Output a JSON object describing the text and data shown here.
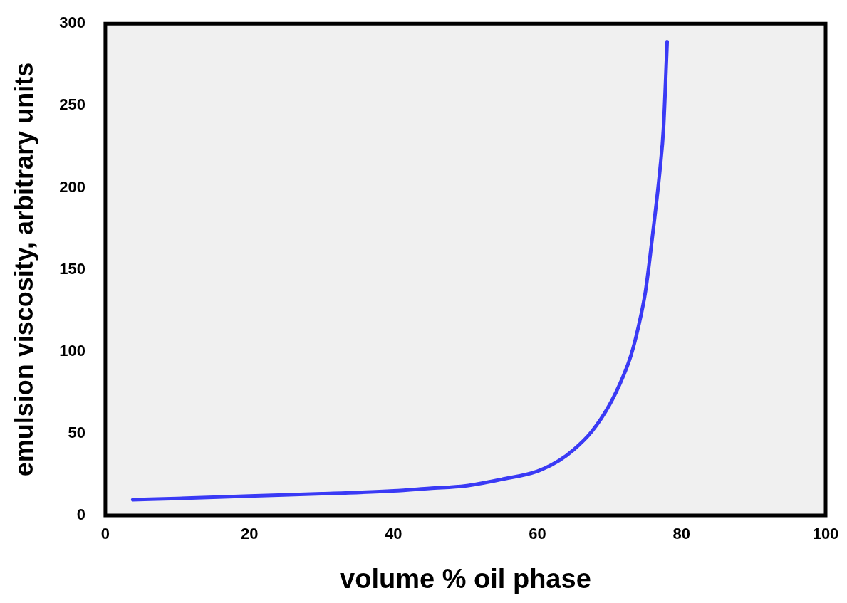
{
  "chart_data": {
    "type": "line",
    "xlabel": "volume % oil phase",
    "ylabel": "emulsion viscosity, arbitrary units",
    "xlim": [
      0,
      100
    ],
    "xticks": [
      0,
      20,
      40,
      60,
      80,
      100
    ],
    "ylim": [
      0,
      300
    ],
    "yticks": [
      0,
      50,
      100,
      150,
      200,
      250,
      300
    ],
    "grid": false,
    "marker": "none",
    "line_style": "solid",
    "series": [
      {
        "color": "#3a3af5",
        "x": [
          3.8,
          10,
          20,
          30,
          40,
          45,
          50,
          55,
          60,
          63,
          65,
          67.5,
          70,
          72,
          73,
          74,
          75,
          76,
          77,
          77.5,
          78
        ],
        "values": [
          9.6,
          10.3,
          11.8,
          13.2,
          15,
          16.5,
          18,
          22,
          27,
          33.5,
          40,
          51,
          67.5,
          86,
          98,
          115,
          137,
          172,
          211,
          237,
          289
        ]
      }
    ]
  }
}
